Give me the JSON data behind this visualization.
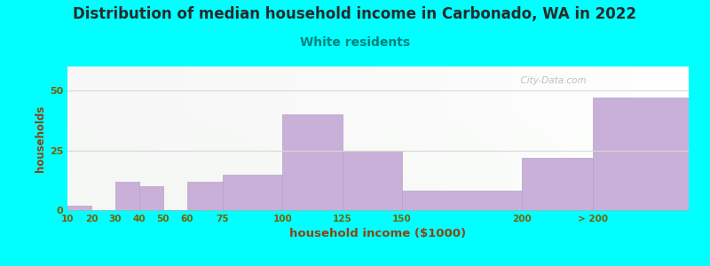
{
  "title": "Distribution of median household income in Carbonado, WA in 2022",
  "subtitle": "White residents",
  "xlabel": "household income ($1000)",
  "ylabel": "households",
  "title_fontsize": 12,
  "subtitle_fontsize": 10,
  "xlabel_fontsize": 9.5,
  "ylabel_fontsize": 8.5,
  "bg_outer": "#00FFFF",
  "bar_color": "#c8b0d8",
  "bar_edge_color": "#b8a0c8",
  "title_color": "#2a2a2a",
  "subtitle_color": "#008080",
  "axis_label_color": "#8B4513",
  "tick_label_color": "#7a6000",
  "watermark_text": "  City-Data.com",
  "watermark_color": "#b0b8b0",
  "tick_labels": [
    "10",
    "20",
    "30",
    "40",
    "50",
    "60",
    "75",
    "100",
    "125",
    "150",
    "200",
    "> 200"
  ],
  "x_positions": [
    10,
    20,
    30,
    40,
    50,
    60,
    75,
    100,
    125,
    150,
    200,
    230
  ],
  "x_widths": [
    10,
    10,
    10,
    10,
    10,
    15,
    25,
    25,
    25,
    50,
    30,
    40
  ],
  "values": [
    2,
    0,
    12,
    10,
    0,
    12,
    15,
    40,
    25,
    8,
    22,
    47
  ],
  "ylim": [
    0,
    60
  ],
  "yticks": [
    0,
    25,
    50
  ],
  "xlim": [
    10,
    270
  ],
  "grid_color": "#d8d8d8",
  "bg_top_color": "#f8fff8",
  "bg_bottom_color": "#e0f0e0",
  "bg_right_color": "#f8f8ff"
}
